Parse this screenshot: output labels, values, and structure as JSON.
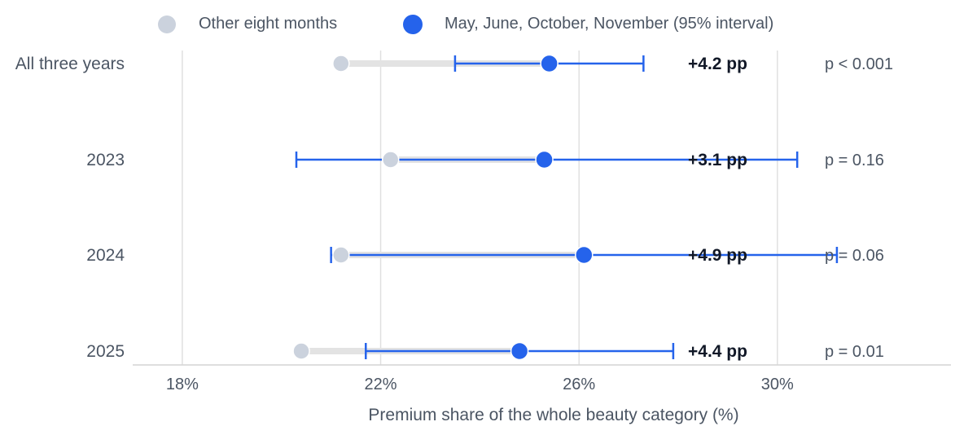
{
  "chart_data": {
    "type": "dumbbell",
    "xlabel": "Premium share of the whole beauty category (%)",
    "x_ticks": [
      "18%",
      "22%",
      "26%",
      "30%"
    ],
    "x_tick_values": [
      18,
      22,
      26,
      30
    ],
    "xlim": [
      17,
      33.5
    ],
    "grid": true,
    "legend_position": "top",
    "legend": [
      {
        "label": "Other eight months",
        "color": "#cbd2dd"
      },
      {
        "label": "May, June, October, November (95% interval)",
        "color": "#2563eb"
      }
    ],
    "series": [
      {
        "name": "Other eight months"
      },
      {
        "name": "May, June, October, November (95% interval)"
      }
    ],
    "rows": [
      {
        "label": "All three years",
        "other": 21.2,
        "peak": 25.4,
        "ci_low": 23.5,
        "ci_high": 27.3,
        "diff": "+4.2 pp",
        "p": "p < 0.001"
      },
      {
        "label": "2023",
        "other": 22.2,
        "peak": 25.3,
        "ci_low": 20.3,
        "ci_high": 30.4,
        "diff": "+3.1 pp",
        "p": "p = 0.16"
      },
      {
        "label": "2024",
        "other": 21.2,
        "peak": 26.1,
        "ci_low": 21.0,
        "ci_high": 31.2,
        "diff": "+4.9 pp",
        "p": "p = 0.06"
      },
      {
        "label": "2025",
        "other": 20.4,
        "peak": 24.8,
        "ci_low": 21.7,
        "ci_high": 27.9,
        "diff": "+4.4 pp",
        "p": "p = 0.01"
      }
    ],
    "colors": {
      "other": "#cbd2dd",
      "peak": "#2563eb",
      "connector": "#e3e3e3",
      "grid": "#e0e0e0",
      "axis": "#d4d4d4"
    }
  }
}
